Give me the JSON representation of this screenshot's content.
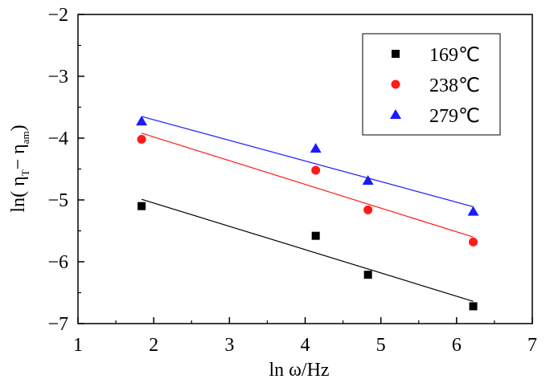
{
  "chart_data": {
    "type": "scatter",
    "title": "",
    "xlabel": "ln ω/Hz",
    "ylabel": {
      "base": "ln( η",
      "sub1": "T",
      "mid": "− η",
      "sub2": "am",
      "tail": ")"
    },
    "xlim": [
      1,
      7
    ],
    "ylim": [
      -7,
      -2
    ],
    "x_ticks": [
      1,
      2,
      3,
      4,
      5,
      6,
      7
    ],
    "y_ticks": [
      -7,
      -6,
      -5,
      -4,
      -3,
      -2
    ],
    "x_tick_labels": [
      "1",
      "2",
      "3",
      "4",
      "5",
      "6",
      "7"
    ],
    "y_tick_labels": [
      "−7",
      "−6",
      "−5",
      "−4",
      "−3",
      "−2"
    ],
    "grid": false,
    "legend_position": "top-right",
    "series": [
      {
        "name": "169℃",
        "marker": "square",
        "color": "#000000",
        "x": [
          1.84,
          4.14,
          4.83,
          6.22
        ],
        "y": [
          -5.1,
          -5.58,
          -6.21,
          -6.72
        ],
        "fit": {
          "x": [
            1.84,
            6.22
          ],
          "y": [
            -4.99,
            -6.64
          ]
        }
      },
      {
        "name": "238℃",
        "marker": "circle",
        "color": "#ff1a1a",
        "x": [
          1.84,
          4.14,
          4.83,
          6.22
        ],
        "y": [
          -4.02,
          -4.52,
          -5.16,
          -5.68
        ],
        "fit": {
          "x": [
            1.84,
            6.22
          ],
          "y": [
            -3.92,
            -5.6
          ]
        }
      },
      {
        "name": "279℃",
        "marker": "triangle",
        "color": "#1a1aff",
        "x": [
          1.84,
          4.14,
          4.83,
          6.22
        ],
        "y": [
          -3.73,
          -4.17,
          -4.69,
          -5.19
        ],
        "fit": {
          "x": [
            1.84,
            6.22
          ],
          "y": [
            -3.65,
            -5.11
          ]
        }
      }
    ]
  }
}
